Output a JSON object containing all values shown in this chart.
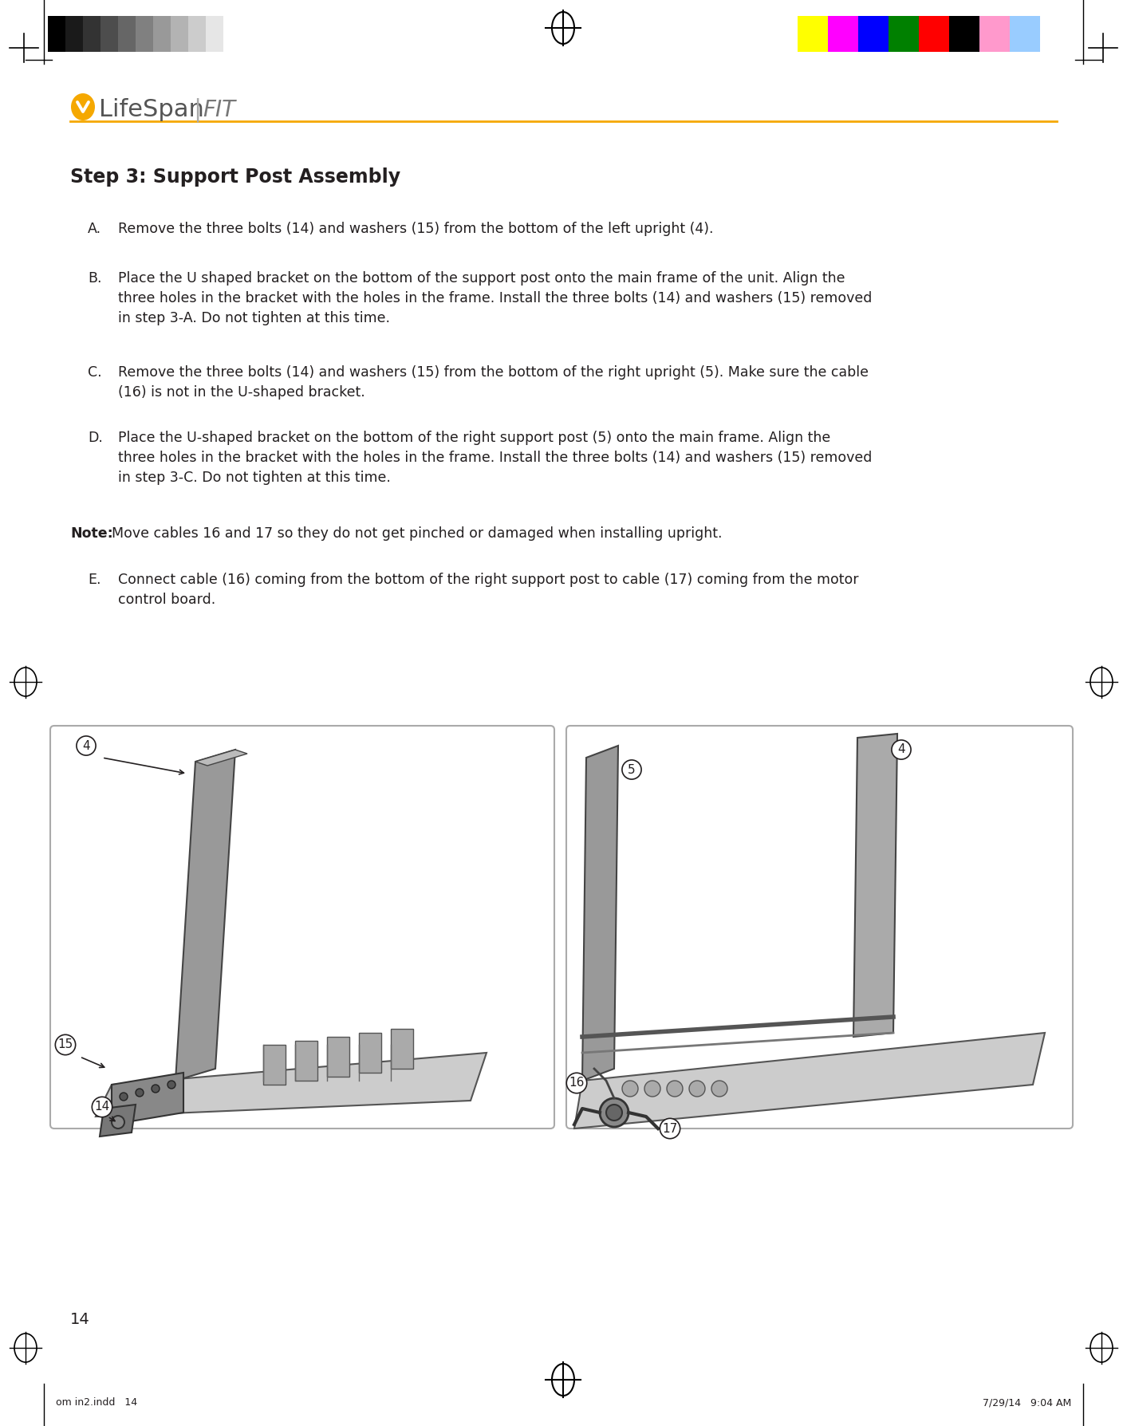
{
  "page_width": 14.13,
  "page_height": 17.88,
  "background_color": "#ffffff",
  "top_bar_colors": {
    "grayscale": [
      "#000000",
      "#1a1a1a",
      "#333333",
      "#4d4d4d",
      "#666666",
      "#808080",
      "#999999",
      "#b3b3b3",
      "#cccccc",
      "#e6e6e6",
      "#ffffff"
    ],
    "color": [
      "#ffff00",
      "#ff00ff",
      "#0000ff",
      "#008000",
      "#ff0000",
      "#000000",
      "#ff99cc",
      "#99ccff"
    ]
  },
  "logo_text_lifespan": "LifeSpan",
  "logo_text_fit": "FIT",
  "logo_color": "#f5a800",
  "separator_color": "#f5a800",
  "title": "Step 3: Support Post Assembly",
  "step_A": "Remove the three bolts (14) and washers (15) from the bottom of the left upright (4).",
  "step_B_lines": [
    "Place the U shaped bracket on the bottom of the support post onto the main frame of the unit. Align the",
    "three holes in the bracket with the holes in the frame. Install the three bolts (14) and washers (15) removed",
    "in step 3-A. Do not tighten at this time."
  ],
  "step_C_lines": [
    "Remove the three bolts (14) and washers (15) from the bottom of the right upright (5). Make sure the cable",
    "(16) is not in the U-shaped bracket."
  ],
  "step_D_lines": [
    "Place the U-shaped bracket on the bottom of the right support post (5) onto the main frame. Align the",
    "three holes in the bracket with the holes in the frame. Install the three bolts (14) and washers (15) removed",
    "in step 3-C. Do not tighten at this time."
  ],
  "note": "Move cables 16 and 17 so they do not get pinched or damaged when installing upright.",
  "step_E_lines": [
    "Connect cable (16) coming from the bottom of the right support post to cable (17) coming from the motor",
    "control board."
  ],
  "page_number": "14",
  "footer_left": "om in2.indd   14",
  "footer_right": "7/29/14   9:04 AM",
  "text_color": "#231f20",
  "light_gray": "#888888"
}
